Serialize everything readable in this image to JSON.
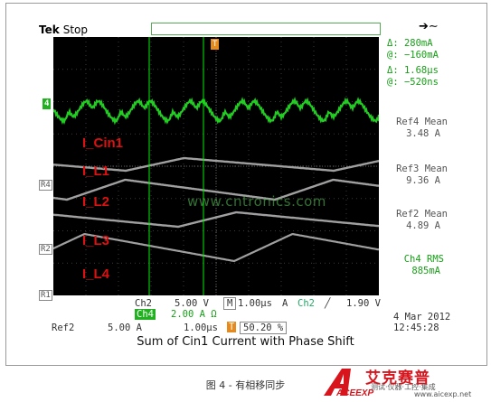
{
  "scope": {
    "brand": "Tek",
    "state": "Stop"
  },
  "readout": {
    "delta_v": "Δ:   280mA",
    "at_v": "@:  −160mA",
    "delta_t": "Δ:   1.68μs",
    "at_t": "@:  −520ns",
    "ref4_title": "Ref4 Mean",
    "ref4_value": "3.48 A",
    "ref3_title": "Ref3 Mean",
    "ref3_value": "9.36 A",
    "ref2_title": "Ref2 Mean",
    "ref2_value": "4.89 A",
    "ch4_title": "Ch4 RMS",
    "ch4_value": "885mA"
  },
  "labels": {
    "cin1": "I_Cin1",
    "l1": "I_L1",
    "l2": "I_L2",
    "l3": "I_L3",
    "l4": "I_L4"
  },
  "markers": {
    "ch4": "4",
    "r4": "R4",
    "r2": "R2",
    "r1": "R1",
    "trigger": "T"
  },
  "bottom": {
    "ch2": "Ch2",
    "ch2_scale": "5.00 V",
    "ch4": "Ch4",
    "ch4_scale": "2.00 A Ω",
    "m": "M",
    "timebase": "1.00μs",
    "a": "A",
    "trig_src": "Ch2",
    "trig_slope": "╱",
    "trig_level": "1.90 V",
    "ref2": "Ref2",
    "ref2_scale": "5.00 A",
    "ref2_time": "1.00μs",
    "t_marker": "T",
    "position": "50.20 %",
    "date": "4 Mar  2012",
    "time": "12:45:28"
  },
  "caption": "Sum of Cin1 Current with Phase Shift",
  "figure_caption": "图 4 - 有相移同步",
  "watermark": "www.cntronics.com",
  "logo": {
    "name": "艾克赛普",
    "tagline": "测试·仪器·工控·集成",
    "url": "www.aicexp.net",
    "mark": "ACEEXP"
  },
  "colors": {
    "trace_green": "#22cc22",
    "trace_gray": "#a0a0a0",
    "cursor": "#00ff00",
    "label_red": "#dd1111",
    "logo_red": "#d8141c"
  }
}
